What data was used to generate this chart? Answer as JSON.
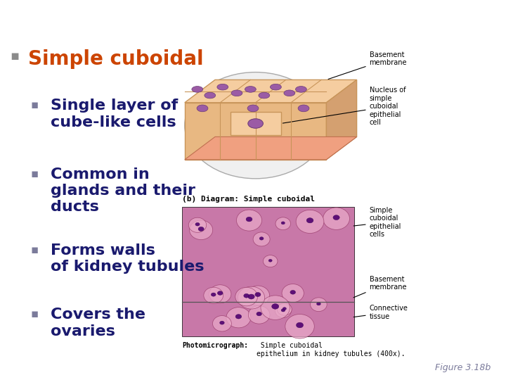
{
  "background_color": "#ffffff",
  "title_bullet_color": "#8B8B8B",
  "heading_color": "#CC4400",
  "sub_bullet_color": "#7B7B9B",
  "text_color": "#1a1a6e",
  "heading_text": "Simple cuboidal",
  "bullets": [
    "Single layer of\ncube-like cells",
    "Common in\nglands and their\nducts",
    "Forms walls\nof kidney tubules",
    "Covers the\novaries"
  ],
  "heading_fontsize": 20,
  "bullet_fontsize": 16,
  "figure_label": "Figure 3.18b",
  "figure_label_color": "#7B7B9B",
  "diagram_caption": "(b) Diagram: Simple cuboidal",
  "photo_caption_bold": "Photomicrograph:",
  "photo_caption_rest": " Simple cuboidal\nepithelium in kidney tubules (400x).",
  "cell_fill": "#F5CDA0",
  "cell_border": "#C8955A",
  "nucleus_color": "#9B5BA5",
  "bm_fill": "#F0A080",
  "bm_border": "#C07050"
}
